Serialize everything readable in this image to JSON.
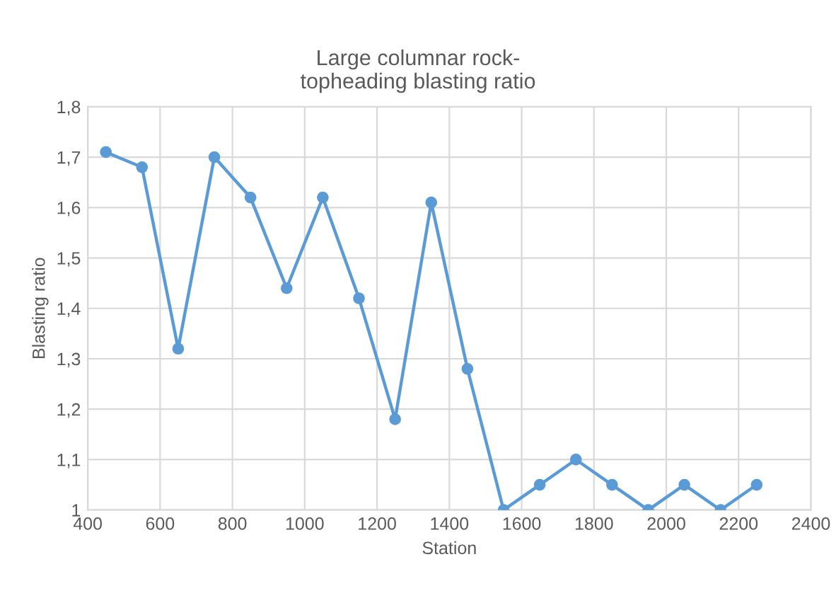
{
  "chart_data": {
    "type": "line",
    "title": "Large columnar rock-\ntopheading blasting ratio",
    "xlabel": "Station",
    "ylabel": "Blasting ratio",
    "x": [
      450,
      550,
      650,
      750,
      850,
      950,
      1050,
      1150,
      1250,
      1350,
      1450,
      1550,
      1650,
      1750,
      1850,
      1950,
      2050,
      2150,
      2250
    ],
    "series": [
      {
        "color": "#5b9bd5",
        "values": [
          1.71,
          1.68,
          1.32,
          1.7,
          1.62,
          1.44,
          1.62,
          1.42,
          1.18,
          1.61,
          1.28,
          1.0,
          1.05,
          1.1,
          1.05,
          1.0,
          1.05,
          1.0,
          1.05
        ]
      }
    ],
    "xlim": [
      400,
      2400
    ],
    "xticks": [
      400,
      600,
      800,
      1000,
      1200,
      1400,
      1600,
      1800,
      2000,
      2200,
      2400
    ],
    "ylim": [
      1,
      1.8
    ],
    "yticks": [
      1,
      {
        "value": 1.1,
        "label": "1,1"
      },
      {
        "value": 1.2,
        "label": "1,2"
      },
      {
        "value": 1.3,
        "label": "1,3"
      },
      {
        "value": 1.4,
        "label": "1,4"
      },
      {
        "value": 1.5,
        "label": "1,5"
      },
      {
        "value": 1.6,
        "label": "1,6"
      },
      {
        "value": 1.7,
        "label": "1,7"
      },
      {
        "value": 1.8,
        "label": "1,8"
      }
    ],
    "grid": true,
    "marker": "circle",
    "line_style": "solid"
  }
}
